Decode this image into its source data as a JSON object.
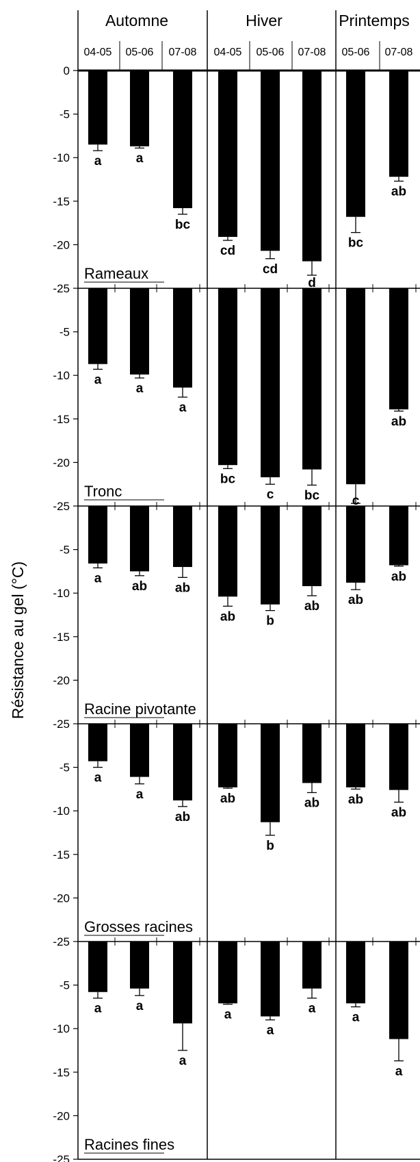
{
  "chart_data": {
    "type": "bar",
    "ylabel": "Résistance au gel (°C)",
    "ylim": [
      -25,
      0
    ],
    "yticks": [
      0,
      -5,
      -10,
      -15,
      -20,
      -25
    ],
    "seasons": [
      {
        "name": "Automne",
        "years": [
          "04-05",
          "05-06",
          "07-08"
        ]
      },
      {
        "name": "Hiver",
        "years": [
          "04-05",
          "05-06",
          "07-08"
        ]
      },
      {
        "name": "Printemps",
        "years": [
          "05-06",
          "07-08"
        ]
      }
    ],
    "panels": [
      {
        "name": "Rameaux",
        "values": [
          -8.5,
          -8.7,
          -15.8,
          -19.1,
          -20.7,
          -21.9,
          -16.8,
          -12.2
        ],
        "errors": [
          0.7,
          0.2,
          0.7,
          0.4,
          0.9,
          1.6,
          1.8,
          0.5
        ],
        "letters": [
          "a",
          "a",
          "bc",
          "cd",
          "cd",
          "d",
          "bc",
          "ab"
        ]
      },
      {
        "name": "Tronc",
        "values": [
          -8.7,
          -9.9,
          -11.4,
          -20.3,
          -21.7,
          -20.8,
          -22.5,
          -13.9
        ],
        "errors": [
          0.6,
          0.4,
          1.1,
          0.4,
          0.8,
          1.8,
          2.2,
          0.2
        ],
        "letters": [
          "a",
          "a",
          "a",
          "bc",
          "c",
          "bc",
          "c",
          "ab"
        ]
      },
      {
        "name": "Racine pivotante",
        "values": [
          -6.6,
          -7.5,
          -7.0,
          -10.4,
          -11.3,
          -9.2,
          -8.8,
          -6.8
        ],
        "errors": [
          0.5,
          0.5,
          1.2,
          1.1,
          0.7,
          1.1,
          0.8,
          0.1
        ],
        "letters": [
          "a",
          "ab",
          "ab",
          "ab",
          "b",
          "ab",
          "ab",
          "ab"
        ]
      },
      {
        "name": "Grosses racines",
        "values": [
          -4.3,
          -6.1,
          -8.8,
          -7.3,
          -11.3,
          -6.8,
          -7.3,
          -7.6
        ],
        "errors": [
          0.7,
          0.8,
          0.7,
          0.1,
          1.5,
          1.1,
          0.2,
          1.4
        ],
        "letters": [
          "a",
          "a",
          "ab",
          "ab",
          "b",
          "ab",
          "ab",
          "ab"
        ]
      },
      {
        "name": "Racines fines",
        "values": [
          -5.8,
          -5.4,
          -9.4,
          -7.1,
          -8.6,
          -5.4,
          -7.1,
          -11.2
        ],
        "errors": [
          0.7,
          0.8,
          3.1,
          0.1,
          0.4,
          1.1,
          0.4,
          2.5
        ],
        "letters": [
          "a",
          "a",
          "a",
          "a",
          "a",
          "a",
          "a",
          "a"
        ]
      }
    ]
  }
}
